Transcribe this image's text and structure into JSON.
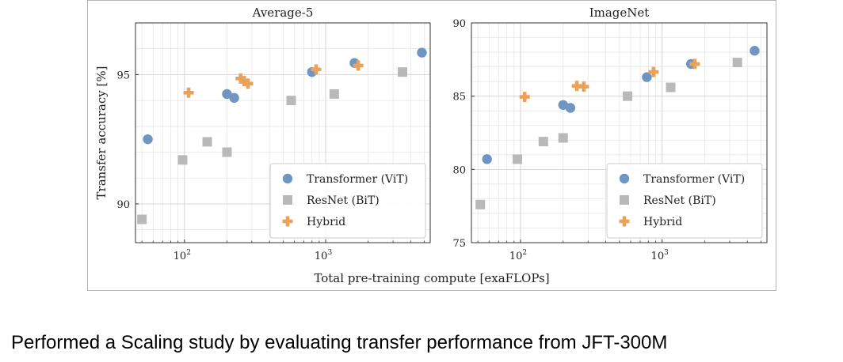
{
  "caption": "Performed a Scaling study by evaluating transfer performance from JFT-300M",
  "colors": {
    "vit": "#6f95c3",
    "bit": "#b9b9b9",
    "hybrid": "#e9a25a",
    "grid": "#e6e6e6",
    "grid_major": "#d4d4d4",
    "frame": "#333333"
  },
  "shared_xlabel": "Total pre-training compute [exaFLOPs]",
  "shared_ylabel": "Transfer accuracy [%]",
  "chart_data": [
    {
      "type": "scatter",
      "title": "Average-5",
      "xscale": "log",
      "xlim": [
        45,
        5500
      ],
      "ylim": [
        88.5,
        97
      ],
      "x_ticks": [
        {
          "value": 100,
          "base": "10",
          "exp": "2"
        },
        {
          "value": 1000,
          "base": "10",
          "exp": "3"
        }
      ],
      "y_ticks": [
        90,
        95
      ],
      "legend": "bottom-right",
      "series": [
        {
          "name": "Transformer (ViT)",
          "marker": "circle",
          "points": [
            [
              55,
              92.5
            ],
            [
              200,
              94.25
            ],
            [
              225,
              94.1
            ],
            [
              800,
              95.1
            ],
            [
              1600,
              95.45
            ],
            [
              4800,
              95.85
            ]
          ]
        },
        {
          "name": "ResNet (BiT)",
          "marker": "square",
          "points": [
            [
              50,
              89.4
            ],
            [
              97,
              91.7
            ],
            [
              145,
              92.4
            ],
            [
              200,
              92.0
            ],
            [
              570,
              94.0
            ],
            [
              1150,
              94.25
            ],
            [
              3500,
              95.1
            ]
          ]
        },
        {
          "name": "Hybrid",
          "marker": "plus",
          "points": [
            [
              107,
              94.3
            ],
            [
              250,
              94.85
            ],
            [
              265,
              94.75
            ],
            [
              282,
              94.65
            ],
            [
              855,
              95.2
            ],
            [
              1700,
              95.35
            ]
          ]
        }
      ]
    },
    {
      "type": "scatter",
      "title": "ImageNet",
      "xscale": "log",
      "xlim": [
        45,
        5500
      ],
      "ylim": [
        75,
        90
      ],
      "x_ticks": [
        {
          "value": 100,
          "base": "10",
          "exp": "2"
        },
        {
          "value": 1000,
          "base": "10",
          "exp": "3"
        }
      ],
      "y_ticks": [
        75,
        80,
        85,
        90
      ],
      "legend": "bottom-right",
      "series": [
        {
          "name": "Transformer (ViT)",
          "marker": "circle",
          "points": [
            [
              58,
              80.7
            ],
            [
              200,
              84.4
            ],
            [
              225,
              84.2
            ],
            [
              780,
              86.3
            ],
            [
              1600,
              87.2
            ],
            [
              4500,
              88.1
            ]
          ]
        },
        {
          "name": "ResNet (BiT)",
          "marker": "square",
          "points": [
            [
              52,
              77.6
            ],
            [
              95,
              80.7
            ],
            [
              145,
              81.9
            ],
            [
              200,
              82.15
            ],
            [
              570,
              85.0
            ],
            [
              1150,
              85.6
            ],
            [
              3400,
              87.3
            ]
          ]
        },
        {
          "name": "Hybrid",
          "marker": "plus",
          "points": [
            [
              107,
              84.95
            ],
            [
              250,
              85.7
            ],
            [
              280,
              85.65
            ],
            [
              870,
              86.65
            ],
            [
              1700,
              87.2
            ]
          ]
        }
      ]
    }
  ]
}
